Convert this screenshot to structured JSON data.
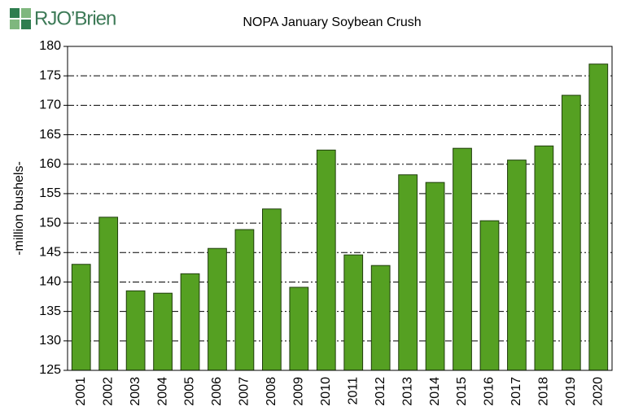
{
  "logo": "RJO’Brien",
  "chart_data": {
    "type": "bar",
    "title": "NOPA January Soybean Crush",
    "y_label": "-million bushels-",
    "categories": [
      "2001",
      "2002",
      "2003",
      "2004",
      "2005",
      "2006",
      "2007",
      "2008",
      "2009",
      "2010",
      "2011",
      "2012",
      "2013",
      "2014",
      "2015",
      "2016",
      "2017",
      "2018",
      "2019",
      "2020"
    ],
    "values": [
      143.0,
      151.0,
      138.5,
      138.1,
      141.4,
      145.7,
      148.9,
      152.4,
      139.1,
      162.4,
      144.6,
      142.8,
      158.2,
      156.9,
      162.7,
      150.4,
      160.7,
      163.1,
      171.7,
      177.0
    ],
    "color": "#55a022",
    "ylim": [
      125,
      180
    ],
    "yticks": [
      125,
      130,
      135,
      140,
      145,
      150,
      155,
      160,
      165,
      170,
      175,
      180
    ],
    "grid": true
  }
}
